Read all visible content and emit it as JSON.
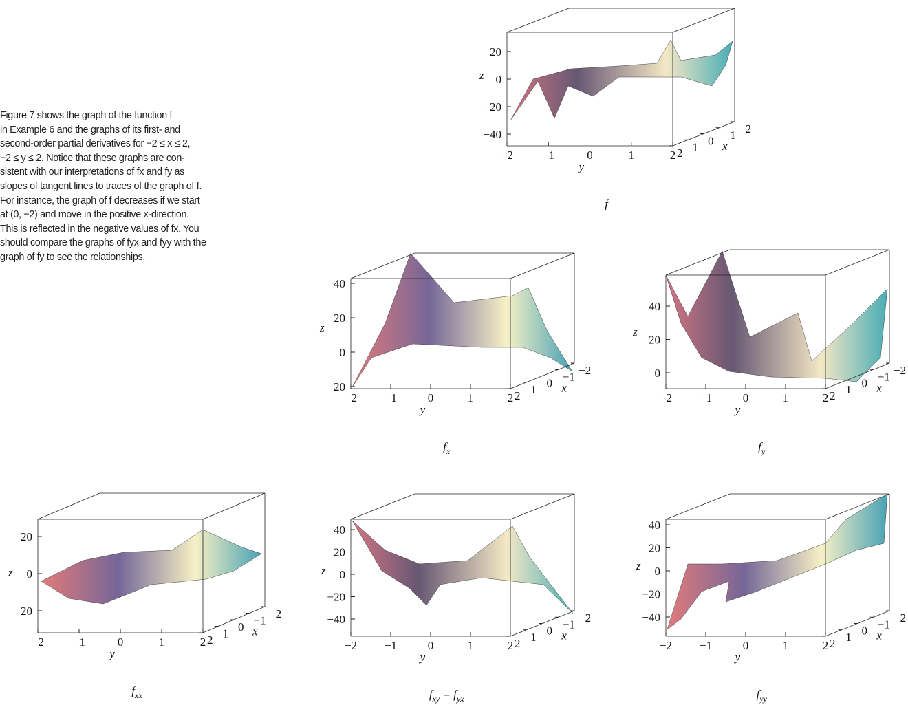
{
  "text": {
    "lines": [
      "Figure 7 shows the graph of the function f",
      "in Example 6 and the graphs of its first- and",
      "second-order partial derivatives for −2 ≤ x ≤ 2,",
      "−2 ≤ y ≤ 2. Notice that these graphs are con-",
      "sistent with our interpretations of fx and fy as",
      "slopes of tangent lines to traces of the graph of f.",
      "For instance, the graph of f decreases if we start",
      "at (0, −2) and move in the positive x-direction.",
      "This is reflected in the negative values of fx. You",
      "should compare the graphs of fyx and fyy with the",
      "graph of fy to see the relationships."
    ]
  },
  "panels": [
    {
      "label": [
        {
          "text": "f"
        }
      ],
      "z_ticks": [
        "20",
        "0",
        "−20",
        "−40"
      ],
      "y_ticks": [
        "−2",
        "−1",
        "0",
        "1",
        "2"
      ],
      "x_ticks": [
        "2",
        "1",
        "0",
        "−1",
        "−2"
      ],
      "z_axis": "z",
      "y_axis": "y",
      "x_axis": "x"
    },
    {
      "label": [
        {
          "text": "f"
        },
        {
          "text": "x",
          "sub": true
        }
      ],
      "z_ticks": [
        "40",
        "20",
        "0",
        "−20"
      ],
      "y_ticks": [
        "−2",
        "−1",
        "0",
        "1",
        "2"
      ],
      "x_ticks": [
        "2",
        "1",
        "0",
        "−1",
        "−2"
      ],
      "z_axis": "z",
      "y_axis": "y",
      "x_axis": "x"
    },
    {
      "label": [
        {
          "text": "f"
        },
        {
          "text": "y",
          "sub": true
        }
      ],
      "z_ticks": [
        "40",
        "20",
        "0"
      ],
      "y_ticks": [
        "−2",
        "−1",
        "0",
        "1",
        "2"
      ],
      "x_ticks": [
        "2",
        "1",
        "0",
        "−1",
        "−2"
      ],
      "z_axis": "z",
      "y_axis": "y",
      "x_axis": "x"
    },
    {
      "label": [
        {
          "text": "f"
        },
        {
          "text": "xx",
          "sub": true
        }
      ],
      "z_ticks": [
        "20",
        "0",
        "−20"
      ],
      "y_ticks": [
        "−2",
        "−1",
        "0",
        "1",
        "2"
      ],
      "x_ticks": [
        "2",
        "1",
        "0",
        "−1",
        "−2"
      ],
      "z_axis": "z",
      "y_axis": "y",
      "x_axis": "x"
    },
    {
      "label": [
        {
          "text": "f"
        },
        {
          "text": "xy",
          "sub": true
        },
        {
          "text": " = f"
        },
        {
          "text": "yx",
          "sub": true
        }
      ],
      "z_ticks": [
        "40",
        "20",
        "0",
        "−20",
        "−40"
      ],
      "y_ticks": [
        "−2",
        "−1",
        "0",
        "1",
        "2"
      ],
      "x_ticks": [
        "2",
        "1",
        "0",
        "−1",
        "−2"
      ],
      "z_axis": "z",
      "y_axis": "y",
      "x_axis": "x"
    },
    {
      "label": [
        {
          "text": "f"
        },
        {
          "text": "yy",
          "sub": true
        }
      ],
      "z_ticks": [
        "40",
        "20",
        "0",
        "−20",
        "−40"
      ],
      "y_ticks": [
        "−2",
        "−1",
        "0",
        "1",
        "2"
      ],
      "x_ticks": [
        "2",
        "1",
        "0",
        "−1",
        "−2"
      ],
      "z_axis": "z",
      "y_axis": "y",
      "x_axis": "x"
    }
  ]
}
